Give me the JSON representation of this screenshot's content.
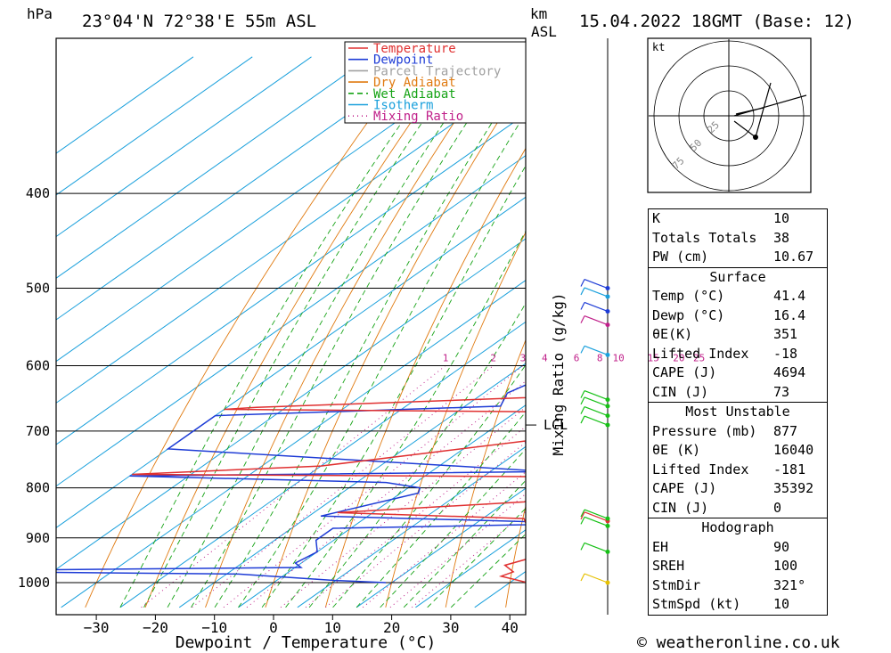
{
  "header": {
    "unit_hpa": "hPa",
    "location": "23°04'N 72°38'E 55m ASL",
    "unit_km": "km",
    "unit_asl": "ASL",
    "datetime": "15.04.2022 18GMT (Base: 12)"
  },
  "chart_data": {
    "type": "line",
    "subtype": "skew-T log-p sounding",
    "xlabel": "Dewpoint / Temperature (°C)",
    "ylabel": "hPa",
    "secondary_ylabel": "Mixing Ratio (g/kg)",
    "x_ticks": [
      -30,
      -20,
      -10,
      0,
      10,
      20,
      30,
      40
    ],
    "p_ticks": [
      400,
      500,
      600,
      700,
      800,
      900,
      1000
    ],
    "xlim": [
      -38,
      43
    ],
    "plim": [
      300,
      1050
    ],
    "mixing_ratio_labels": [
      "1",
      "2",
      "3",
      "4",
      "6",
      "8",
      "10",
      "15",
      "20",
      "25"
    ],
    "mixing_ratio_values": [
      1,
      2,
      3,
      4,
      6,
      8,
      10,
      15,
      20,
      25
    ],
    "lcl_label": "LCL",
    "lcl_pressure": 690,
    "legend": [
      {
        "label": "Temperature",
        "color": "#e03030",
        "dash": ""
      },
      {
        "label": "Dewpoint",
        "color": "#1e3cd6",
        "dash": ""
      },
      {
        "label": "Parcel Trajectory",
        "color": "#a0a0a0",
        "dash": ""
      },
      {
        "label": "Dry Adiabat",
        "color": "#e07a10",
        "dash": ""
      },
      {
        "label": "Wet Adiabat",
        "color": "#16a316",
        "dash": "6,4"
      },
      {
        "label": "Isotherm",
        "color": "#1aa0dc",
        "dash": ""
      },
      {
        "label": "Mixing Ratio",
        "color": "#c0208a",
        "dash": "1,4"
      }
    ],
    "series": [
      {
        "name": "Temperature",
        "color": "#e03030",
        "points": [
          [
            1000,
            43
          ],
          [
            985,
            37
          ],
          [
            975,
            38
          ],
          [
            960,
            35
          ],
          [
            935,
            39
          ],
          [
            918,
            35
          ],
          [
            902,
            40
          ],
          [
            880,
            30
          ],
          [
            860,
            27
          ],
          [
            848,
            -6
          ],
          [
            827,
            23
          ],
          [
            810,
            27
          ],
          [
            800,
            26
          ],
          [
            780,
            32
          ],
          [
            775,
            -50
          ],
          [
            760,
            -20
          ],
          [
            700,
            20
          ],
          [
            670,
            21
          ],
          [
            665,
            -50
          ],
          [
            662,
            -45
          ],
          [
            640,
            19
          ],
          [
            615,
            21
          ],
          [
            600,
            19
          ],
          [
            590,
            40
          ],
          [
            575,
            30
          ],
          [
            568,
            -12
          ],
          [
            520,
            3
          ],
          [
            470,
            17
          ],
          [
            440,
            16
          ],
          [
            400,
            12
          ],
          [
            390,
            -45
          ],
          [
            380,
            -42
          ],
          [
            370,
            -20
          ],
          [
            355,
            -30
          ],
          [
            350,
            -25
          ],
          [
            330,
            -18
          ],
          [
            305,
            -12
          ]
        ]
      },
      {
        "name": "Dewpoint",
        "color": "#1e3cd6",
        "points": [
          [
            1000,
            19
          ],
          [
            995,
            10
          ],
          [
            980,
            -8
          ],
          [
            975,
            -50
          ],
          [
            970,
            -40
          ],
          [
            965,
            1
          ],
          [
            955,
            -1
          ],
          [
            930,
            0
          ],
          [
            905,
            -3
          ],
          [
            880,
            -3
          ],
          [
            870,
            40
          ],
          [
            855,
            -8
          ],
          [
            810,
            3
          ],
          [
            800,
            2
          ],
          [
            790,
            -5
          ],
          [
            778,
            -50
          ],
          [
            770,
            20
          ],
          [
            730,
            -50
          ],
          [
            675,
            -50
          ],
          [
            660,
            -4
          ],
          [
            640,
            -6
          ],
          [
            620,
            -4
          ],
          [
            600,
            -4
          ],
          [
            590,
            25
          ],
          [
            580,
            31
          ],
          [
            572,
            24
          ],
          [
            570,
            -5
          ],
          [
            560,
            -3
          ],
          [
            520,
            -1
          ],
          [
            470,
            1
          ],
          [
            430,
            0
          ],
          [
            400,
            -5
          ],
          [
            395,
            -10
          ],
          [
            385,
            -40
          ],
          [
            380,
            -40
          ],
          [
            372,
            -38
          ],
          [
            370,
            25
          ],
          [
            360,
            10
          ],
          [
            330,
            -5
          ],
          [
            300,
            -10
          ]
        ]
      },
      {
        "name": "Parcel Trajectory",
        "color": "#a0a0a0",
        "points": [
          [
            960,
            40
          ],
          [
            900,
            35
          ],
          [
            850,
            30
          ],
          [
            800,
            26
          ],
          [
            750,
            23
          ],
          [
            700,
            22
          ],
          [
            600,
            17
          ],
          [
            500,
            7
          ],
          [
            400,
            -12
          ],
          [
            350,
            -25
          ],
          [
            330,
            -32
          ]
        ]
      }
    ]
  },
  "hodograph": {
    "unit": "kt",
    "ring_labels": [
      "25",
      "50",
      "75"
    ]
  },
  "wind_profile": {
    "pressures": [
      1000,
      930,
      875,
      865,
      860,
      690,
      675,
      660,
      650,
      585,
      545,
      528,
      510,
      500
    ],
    "colors": [
      "#e6c000",
      "#16c016",
      "#16c016",
      "#e03030",
      "#16c016",
      "#16c016",
      "#16c016",
      "#16c016",
      "#16c016",
      "#1aa0dc",
      "#c0208a",
      "#1e3cd6",
      "#1aa0dc",
      "#1e3cd6"
    ]
  },
  "indices": {
    "basic": [
      {
        "label": "K",
        "value": "10"
      },
      {
        "label": "Totals Totals",
        "value": "38"
      },
      {
        "label": "PW (cm)",
        "value": "10.67"
      }
    ],
    "surface_title": "Surface",
    "surface": [
      {
        "label": "Temp (°C)",
        "value": "41.4"
      },
      {
        "label": "Dewp (°C)",
        "value": "16.4"
      },
      {
        "label": "θE(K)",
        "value": "351"
      },
      {
        "label": "Lifted Index",
        "value": "-18"
      },
      {
        "label": "CAPE (J)",
        "value": "4694"
      },
      {
        "label": "CIN (J)",
        "value": "73"
      }
    ],
    "mu_title": "Most Unstable",
    "mu": [
      {
        "label": "Pressure (mb)",
        "value": "877"
      },
      {
        "label": "θE (K)",
        "value": "16040"
      },
      {
        "label": "Lifted Index",
        "value": "-181"
      },
      {
        "label": "CAPE (J)",
        "value": "35392"
      },
      {
        "label": "CIN (J)",
        "value": "0"
      }
    ],
    "hodo_title": "Hodograph",
    "hodo": [
      {
        "label": "EH",
        "value": "90"
      },
      {
        "label": "SREH",
        "value": "100"
      },
      {
        "label": "StmDir",
        "value": "321°"
      },
      {
        "label": "StmSpd (kt)",
        "value": "10"
      }
    ]
  },
  "footer": {
    "credit": "© weatheronline.co.uk"
  }
}
